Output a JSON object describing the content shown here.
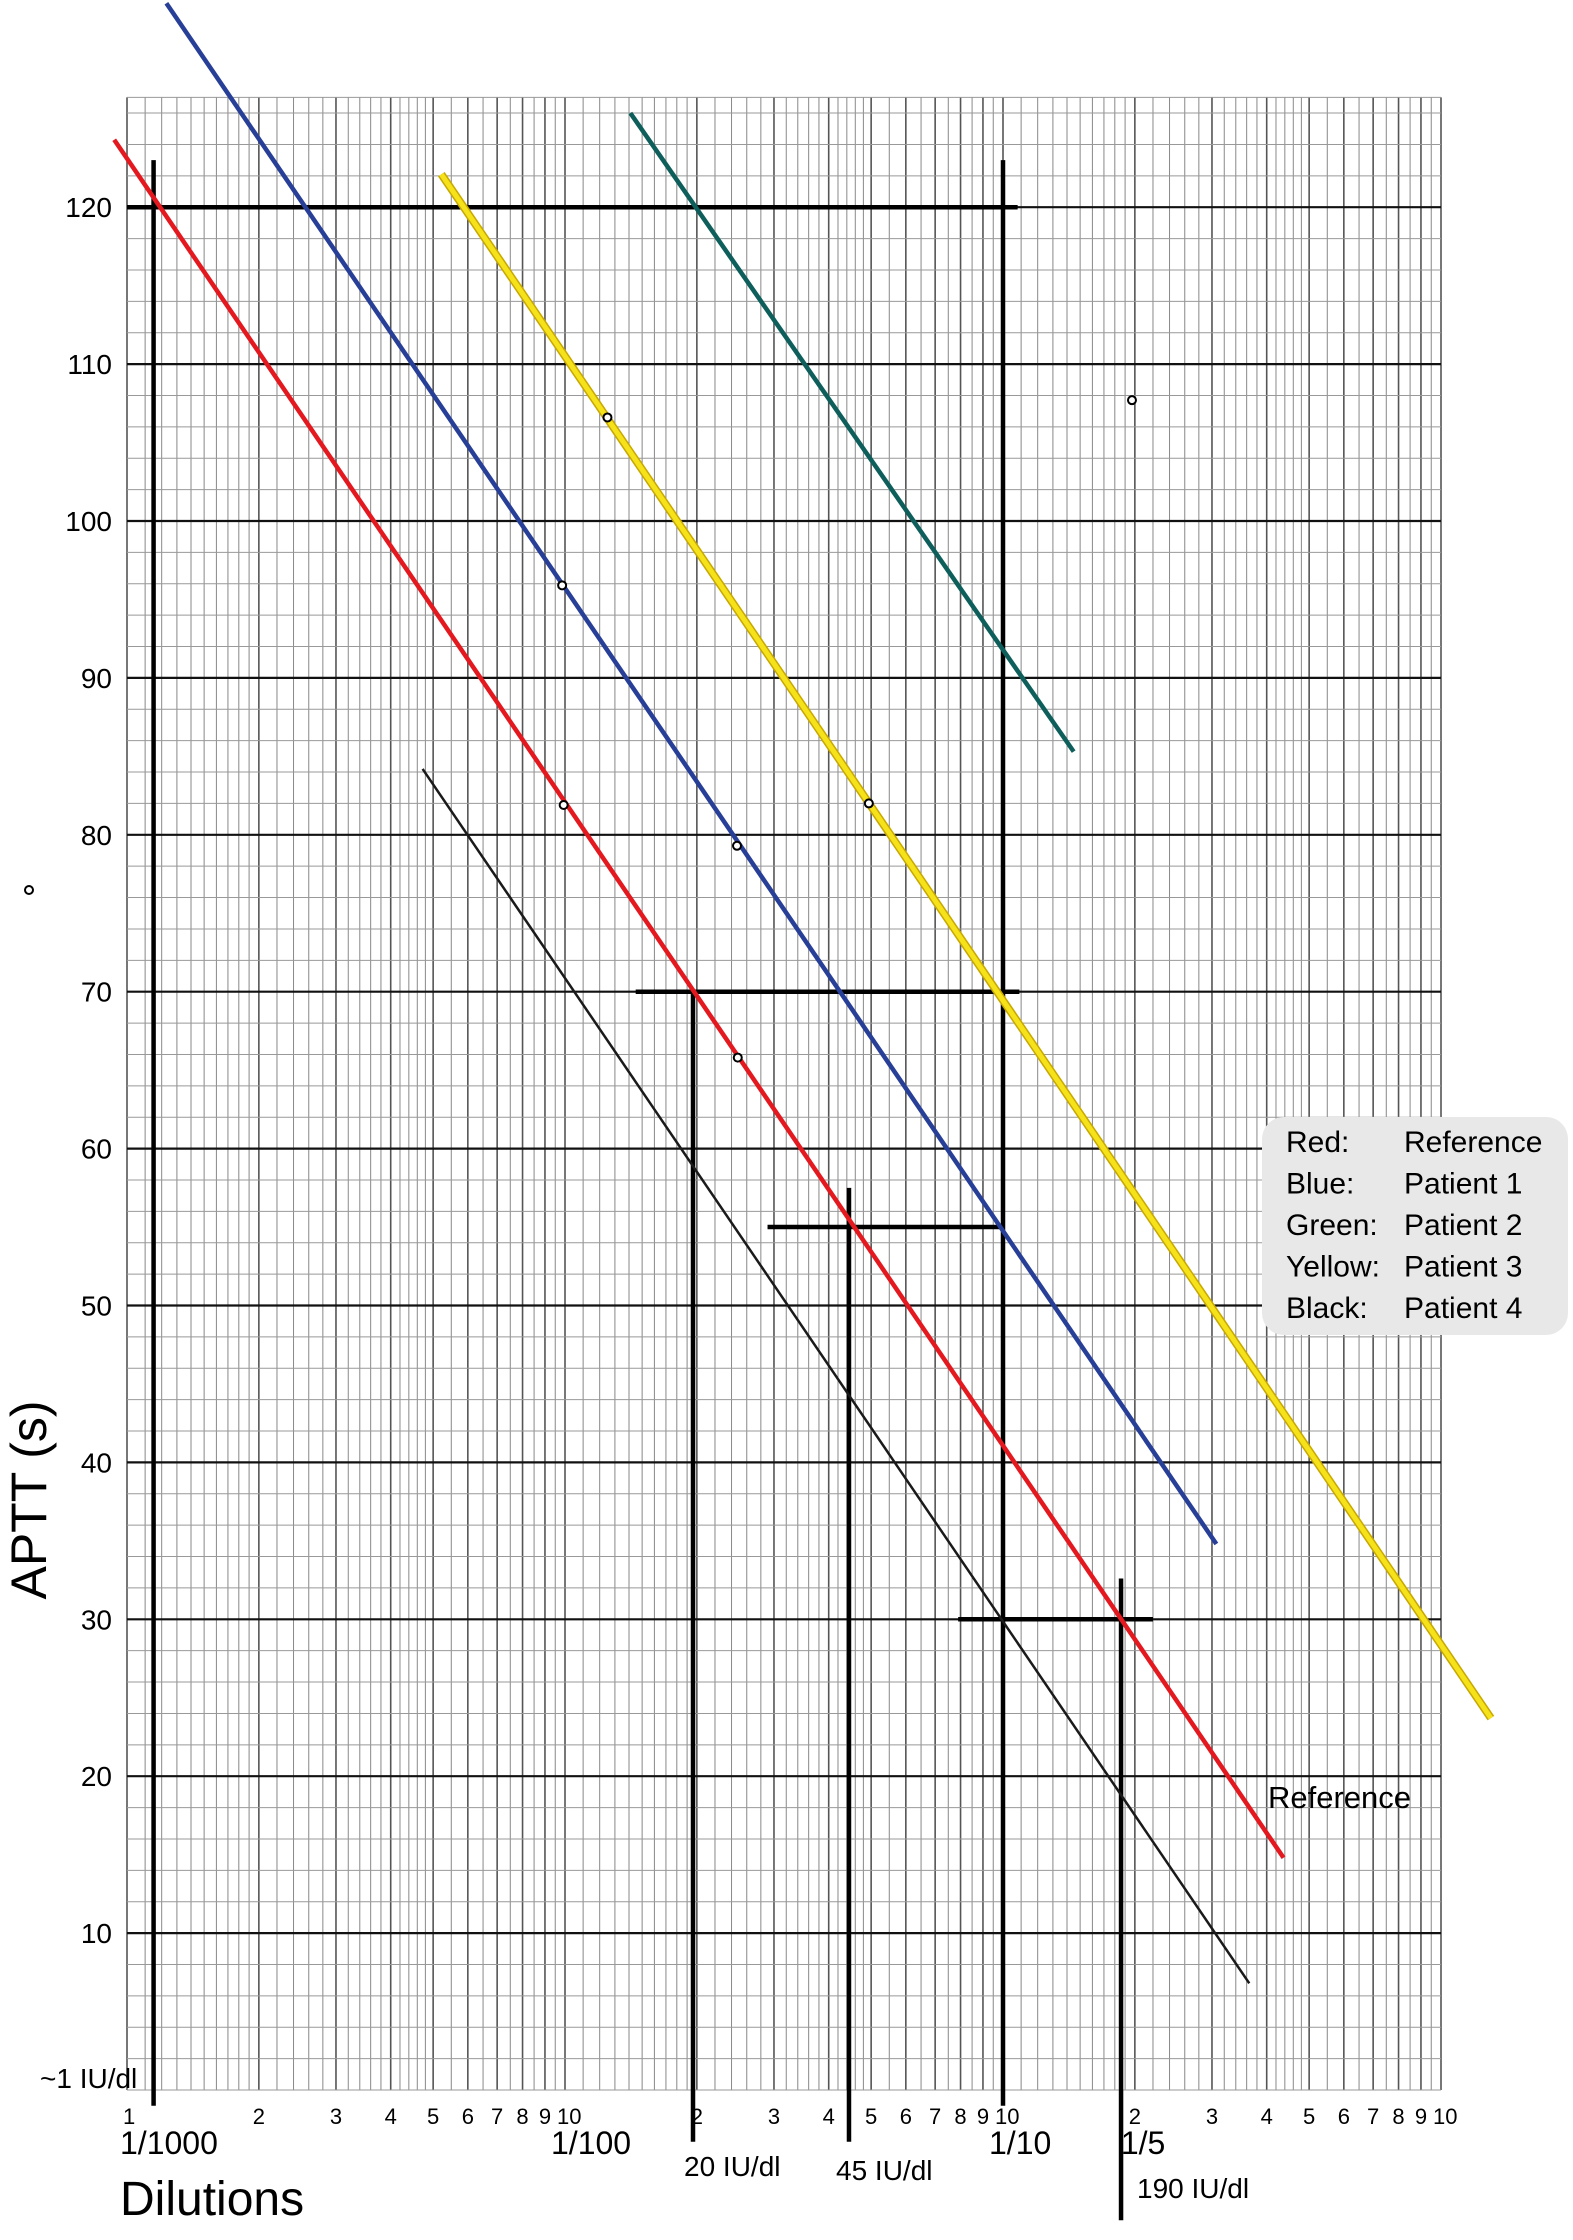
{
  "chart_data": {
    "type": "line",
    "xscale": "log",
    "xlim": [
      0.001,
      1
    ],
    "ylim": [
      0,
      127
    ],
    "grid": true,
    "ylabel": "APTT (s)",
    "xlabel": "Dilutions",
    "y_ticks": [
      10,
      20,
      30,
      40,
      50,
      60,
      70,
      80,
      90,
      100,
      110,
      120
    ],
    "x_minor_tick_labels": [
      [
        "1",
        "2",
        "3",
        "4",
        "5",
        "6",
        "7",
        "8",
        "9",
        "10"
      ],
      [
        "2",
        "3",
        "4",
        "5",
        "6",
        "7",
        "8",
        "9",
        "10"
      ],
      [
        "2",
        "3",
        "4",
        "5",
        "6",
        "7",
        "8",
        "9",
        "10"
      ]
    ],
    "x_decade_labels": [
      {
        "text": "1/1000",
        "x": 0.001
      },
      {
        "text": "1/100",
        "x": 0.01
      },
      {
        "text": "1/10",
        "x": 0.1
      },
      {
        "text": "1/5",
        "x": 0.2
      }
    ],
    "series": [
      {
        "name": "Reference",
        "color": "#e3191f",
        "x": [
          0.000935,
          0.437
        ],
        "y": [
          124.3,
          14.8
        ],
        "points": [
          [
            0.00993,
            81.9
          ],
          [
            0.0248,
            65.8
          ]
        ]
      },
      {
        "name": "Patient 1",
        "color": "#283f98",
        "x": [
          0.00123,
          0.307
        ],
        "y": [
          133,
          34.8
        ],
        "points": [
          [
            0.00985,
            95.9
          ],
          [
            0.0247,
            79.3
          ]
        ]
      },
      {
        "name": "Patient 2",
        "color": "#0e5f5c",
        "x": [
          0.0141,
          0.145
        ],
        "y": [
          126,
          85.3
        ],
        "points": [
          [
            0.197,
            107.7
          ]
        ]
      },
      {
        "name": "Patient 3",
        "color": "#f5e21a",
        "x": [
          0.00522,
          1.3
        ],
        "y": [
          122.1,
          23.7
        ],
        "points": [
          [
            0.0125,
            106.6
          ],
          [
            0.0494,
            82
          ]
        ]
      },
      {
        "name": "Patient 4",
        "color": "#1a1a1a",
        "x": [
          0.00473,
          0.365
        ],
        "y": [
          84.2,
          6.8
        ],
        "points": []
      }
    ],
    "reference_lines": [
      {
        "kind": "v",
        "x": 0.00115,
        "y": [
          -1,
          123
        ]
      },
      {
        "kind": "h",
        "y": 120,
        "x": [
          0.001,
          0.108
        ]
      },
      {
        "kind": "v",
        "x": 0.1,
        "y": [
          -1,
          123
        ]
      },
      {
        "kind": "h",
        "y": 70,
        "x": [
          0.0145,
          0.109
        ]
      },
      {
        "kind": "v",
        "x": 0.0196,
        "y": [
          -3.3,
          70
        ]
      },
      {
        "kind": "h",
        "y": 55,
        "x": [
          0.029,
          0.1
        ]
      },
      {
        "kind": "v",
        "x": 0.0445,
        "y": [
          -3.3,
          57.5
        ]
      },
      {
        "kind": "h",
        "y": 30,
        "x": [
          0.079,
          0.22
        ]
      },
      {
        "kind": "v",
        "x": 0.186,
        "y": [
          -8.3,
          32.6
        ]
      }
    ],
    "annotations": [
      {
        "text": "~1 IU/dl"
      },
      {
        "text": "20 IU/dl"
      },
      {
        "text": "45 IU/dl"
      },
      {
        "text": "190 IU/dl"
      },
      {
        "text": "Reference"
      }
    ],
    "legend": {
      "placement": "right",
      "entries": [
        {
          "color": "Red:",
          "label": "Reference"
        },
        {
          "color": "Blue:",
          "label": "Patient 1"
        },
        {
          "color": "Green:",
          "label": "Patient 2"
        },
        {
          "color": "Yellow:",
          "label": "Patient 3"
        },
        {
          "color": "Black:",
          "label": "Patient 4"
        }
      ]
    }
  }
}
